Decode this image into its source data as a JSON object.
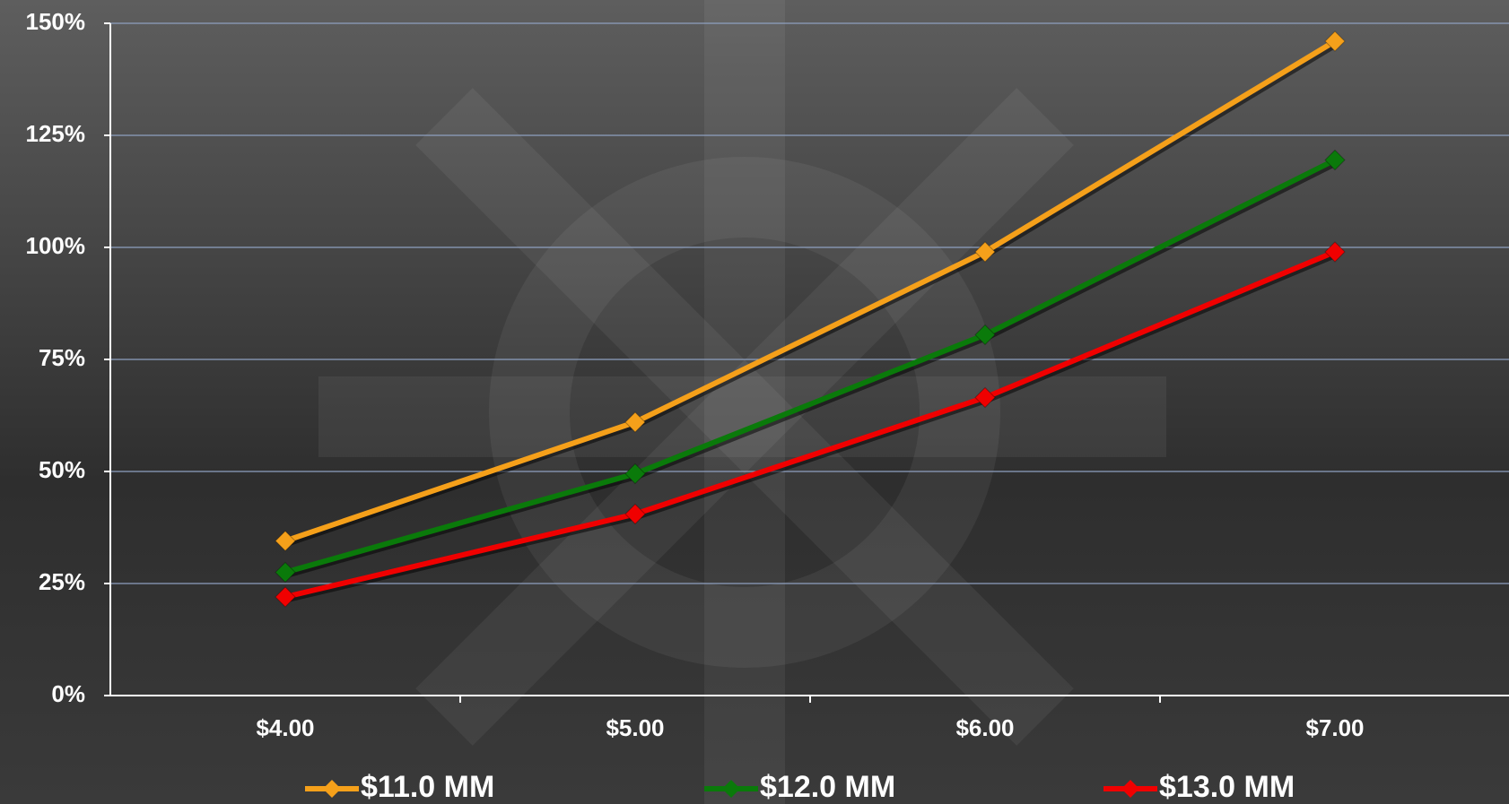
{
  "chart_data": {
    "type": "line",
    "categories": [
      "$4.00",
      "$5.00",
      "$6.00",
      "$7.00"
    ],
    "series": [
      {
        "name": "$11.0 MM",
        "color": "#f5a01a",
        "values": [
          34.5,
          61,
          99,
          146
        ]
      },
      {
        "name": "$12.0 MM",
        "color": "#0a7a0a",
        "values": [
          27.5,
          49.5,
          80.5,
          119.5
        ]
      },
      {
        "name": "$13.0 MM",
        "color": "#f00000",
        "values": [
          22,
          40.5,
          66.5,
          99
        ]
      }
    ],
    "ylim": [
      0,
      150
    ],
    "yticks": [
      {
        "value": 0,
        "label": "0%"
      },
      {
        "value": 25,
        "label": "25%"
      },
      {
        "value": 50,
        "label": "50%"
      },
      {
        "value": 75,
        "label": "75%"
      },
      {
        "value": 100,
        "label": "100%"
      },
      {
        "value": 125,
        "label": "125%"
      },
      {
        "value": 150,
        "label": "150%"
      }
    ],
    "grid": true
  }
}
